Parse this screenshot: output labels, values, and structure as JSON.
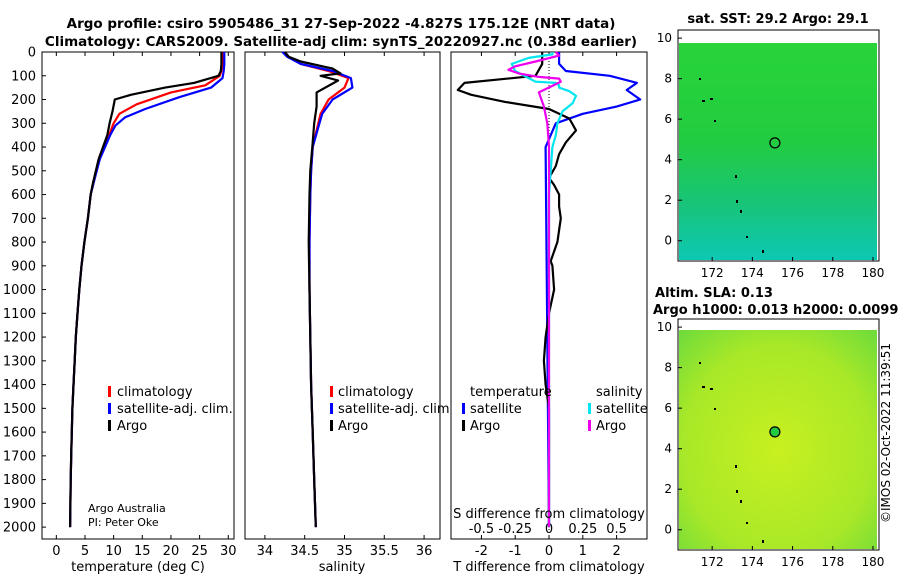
{
  "title": {
    "line1": "Argo profile: csiro 5905486_31 27-Sep-2022 -4.827S 175.12E (NRT data)",
    "line2": "Climatology: CARS2009. Satellite-adj clim: synTS_20220927.nc (0.38d earlier)"
  },
  "credits": {
    "org": "Argo Australia",
    "pi": "PI: Peter Oke"
  },
  "stamp": "©IMOS 02-Oct-2022 11:39:51",
  "colors": {
    "climatology": "#ff0000",
    "satellite": "#0000ff",
    "argo": "#000000",
    "satellite_s": "#00e5ee",
    "argo_s": "#ee00ee",
    "dotted": "#000000"
  },
  "chart_data": [
    {
      "id": "temperature",
      "type": "line",
      "xlabel": "temperature (deg C)",
      "ylabel": "",
      "xlim": [
        -2.5,
        31
      ],
      "ylim": [
        2050,
        0
      ],
      "xticks": [
        "0",
        "5",
        "10",
        "15",
        "20",
        "25",
        "30"
      ],
      "xtick_values": [
        0,
        5,
        10,
        15,
        20,
        25,
        30
      ],
      "yticks": [
        "0",
        "100",
        "200",
        "300",
        "400",
        "500",
        "600",
        "700",
        "800",
        "900",
        "1000",
        "1100",
        "1200",
        "1300",
        "1400",
        "1500",
        "1600",
        "1700",
        "1800",
        "1900",
        "2000"
      ],
      "ytick_values": [
        0,
        100,
        200,
        300,
        400,
        500,
        600,
        700,
        800,
        900,
        1000,
        1100,
        1200,
        1300,
        1400,
        1500,
        1600,
        1700,
        1800,
        1900,
        2000
      ],
      "legend": [
        "climatology",
        "satellite-adj. clim.",
        "Argo"
      ],
      "series": [
        {
          "name": "climatology",
          "color": "#ff0000",
          "x": [
            29.0,
            29.0,
            28.8,
            28.5,
            26.0,
            20.0,
            14.0,
            11.0,
            10.0,
            9.2,
            7.5,
            6.5,
            6.0,
            5.5,
            4.9,
            4.4,
            4.0,
            3.7,
            3.4,
            3.2,
            3.0,
            2.8,
            2.7,
            2.6,
            2.5,
            2.45,
            2.4
          ],
          "y": [
            0,
            50,
            80,
            100,
            140,
            170,
            220,
            260,
            300,
            350,
            450,
            550,
            600,
            700,
            800,
            900,
            1000,
            1100,
            1200,
            1300,
            1400,
            1500,
            1600,
            1700,
            1800,
            1900,
            2000
          ]
        },
        {
          "name": "satellite-adj. clim.",
          "color": "#0000ff",
          "x": [
            29.3,
            29.3,
            29.2,
            29.0,
            27.0,
            21.5,
            15.5,
            12.0,
            10.3,
            9.4,
            7.6,
            6.5,
            6.0,
            5.5,
            4.9,
            4.4,
            4.0,
            3.7,
            3.4,
            3.2,
            3.0,
            2.8,
            2.7,
            2.6,
            2.5,
            2.45,
            2.4
          ],
          "y": [
            0,
            50,
            80,
            110,
            150,
            190,
            240,
            275,
            310,
            350,
            450,
            550,
            600,
            700,
            800,
            900,
            1000,
            1100,
            1200,
            1300,
            1400,
            1500,
            1600,
            1700,
            1800,
            1900,
            2000
          ]
        },
        {
          "name": "Argo",
          "color": "#000000",
          "x": [
            28.8,
            28.8,
            28.7,
            28.3,
            24.0,
            19.0,
            13.0,
            10.2,
            9.8,
            9.3,
            8.9,
            7.4,
            6.4,
            6.0,
            5.5,
            4.9,
            4.4,
            4.0,
            3.7,
            3.4,
            3.2,
            3.0,
            2.8,
            2.7,
            2.6,
            2.5,
            2.45,
            2.4
          ],
          "y": [
            0,
            50,
            80,
            100,
            130,
            150,
            180,
            200,
            250,
            300,
            350,
            450,
            550,
            600,
            700,
            800,
            900,
            1000,
            1100,
            1200,
            1300,
            1400,
            1500,
            1600,
            1700,
            1800,
            1900,
            2000
          ]
        }
      ]
    },
    {
      "id": "salinity",
      "type": "line",
      "xlabel": "salinity",
      "xlim": [
        33.75,
        36.2
      ],
      "ylim": [
        2050,
        0
      ],
      "xticks": [
        "34",
        "34.5",
        "35",
        "35.5",
        "36"
      ],
      "xtick_values": [
        34,
        34.5,
        35,
        35.5,
        36
      ],
      "legend": [
        "climatology",
        "satellite-adj. clim.",
        "Argo"
      ],
      "series": [
        {
          "name": "climatology",
          "color": "#ff0000",
          "x": [
            34.25,
            34.3,
            34.45,
            34.8,
            35.05,
            35.0,
            34.8,
            34.7,
            34.65,
            34.6,
            34.58,
            34.57,
            34.56,
            34.56,
            34.57,
            34.58,
            34.6,
            34.62,
            34.64
          ],
          "y": [
            0,
            20,
            50,
            80,
            110,
            150,
            200,
            260,
            330,
            400,
            500,
            600,
            800,
            1000,
            1200,
            1400,
            1600,
            1800,
            2000
          ]
        },
        {
          "name": "satellite-adj. clim.",
          "color": "#0000ff",
          "x": [
            34.22,
            34.28,
            34.45,
            34.85,
            35.08,
            35.1,
            34.85,
            34.72,
            34.66,
            34.6,
            34.58,
            34.57,
            34.56,
            34.56,
            34.57,
            34.58,
            34.6,
            34.62,
            34.64
          ],
          "y": [
            0,
            20,
            50,
            80,
            110,
            150,
            200,
            260,
            330,
            400,
            500,
            600,
            800,
            1000,
            1200,
            1400,
            1600,
            1800,
            2000
          ]
        },
        {
          "name": "Argo",
          "color": "#000000",
          "x": [
            34.25,
            34.3,
            34.45,
            34.85,
            34.95,
            34.7,
            34.92,
            34.65,
            34.65,
            34.62,
            34.6,
            34.57,
            34.56,
            34.55,
            34.56,
            34.57,
            34.58,
            34.6,
            34.62,
            34.64
          ],
          "y": [
            0,
            20,
            40,
            70,
            90,
            100,
            120,
            170,
            230,
            300,
            380,
            500,
            600,
            800,
            1000,
            1200,
            1400,
            1600,
            1800,
            2000
          ]
        }
      ]
    },
    {
      "id": "difference",
      "type": "line",
      "xlabel": "T difference from climatology",
      "xlabel_top": "S difference from climatology",
      "xlim": [
        -2.9,
        2.9
      ],
      "ylim": [
        2050,
        0
      ],
      "xticks": [
        "-2",
        "-1",
        "0",
        "1",
        "2"
      ],
      "xtick_values": [
        -2,
        -1,
        0,
        1,
        2
      ],
      "xticks_s": [
        "-0.5",
        "-0.25",
        "0",
        "0.25",
        "0.5"
      ],
      "xtick_values_s": [
        -2,
        -1,
        0,
        1,
        2
      ],
      "legend_title_t": "temperature",
      "legend_title_s": "salinity",
      "legend_t": [
        "satellite",
        "Argo"
      ],
      "legend_s": [
        "satellite",
        "Argo"
      ],
      "series": [
        {
          "name": "T satellite",
          "color": "#0000ff",
          "x": [
            0.3,
            0.3,
            0.5,
            1.8,
            2.6,
            2.3,
            2.7,
            2.0,
            1.0,
            0.2,
            -0.1,
            0.0
          ],
          "y": [
            0,
            50,
            80,
            100,
            130,
            160,
            200,
            230,
            260,
            300,
            400,
            2000
          ]
        },
        {
          "name": "T Argo",
          "color": "#000000",
          "x": [
            -0.2,
            -0.2,
            -0.4,
            -2.5,
            -2.7,
            -2.3,
            -1.3,
            0.0,
            0.6,
            0.8,
            0.5,
            0.3,
            0.2,
            0.0,
            0.15,
            0.3,
            0.3,
            0.35,
            0.25,
            0.05,
            0.1,
            0.15,
            0.0,
            -0.1,
            -0.15,
            -0.1,
            0.0,
            0.0
          ],
          "y": [
            0,
            50,
            100,
            130,
            160,
            180,
            210,
            240,
            280,
            330,
            380,
            430,
            480,
            530,
            560,
            600,
            650,
            700,
            800,
            880,
            900,
            1000,
            1100,
            1200,
            1300,
            1400,
            1500,
            2000
          ]
        },
        {
          "name": "S satellite",
          "color": "#00e5ee",
          "x": [
            0.1,
            0.1,
            -0.6,
            -1.1,
            -1.0,
            -0.6,
            -0.4,
            0.2,
            0.3,
            0.3,
            0.6,
            0.8,
            0.7,
            0.4,
            0.25,
            0.2,
            0.1,
            0.05,
            0.0,
            0.0,
            0.0
          ],
          "y": [
            0,
            10,
            25,
            50,
            80,
            110,
            125,
            130,
            140,
            150,
            165,
            185,
            215,
            250,
            300,
            350,
            400,
            500,
            600,
            700,
            2000
          ]
        },
        {
          "name": "S Argo",
          "color": "#ee00ee",
          "x": [
            0.2,
            0.3,
            -0.4,
            -1.0,
            -1.2,
            -0.9,
            -0.3,
            0.3,
            0.35,
            -0.3,
            -0.15,
            -0.05,
            0.0,
            0.0,
            0.0
          ],
          "y": [
            0,
            15,
            40,
            60,
            75,
            90,
            105,
            112,
            125,
            170,
            230,
            300,
            400,
            600,
            2000
          ]
        }
      ]
    },
    {
      "id": "sst_map",
      "type": "heatmap",
      "title": "sat. SST: 29.2 Argo: 29.1",
      "xlim": [
        170.3,
        180.3
      ],
      "ylim": [
        -1,
        10.4
      ],
      "xticks": [
        "172",
        "174",
        "176",
        "178",
        "180"
      ],
      "xtick_values": [
        172,
        174,
        176,
        178,
        180
      ],
      "yticks": [
        "0",
        "2",
        "4",
        "6",
        "8",
        "10"
      ],
      "ytick_values": [
        0,
        2,
        4,
        6,
        8,
        10
      ],
      "marker": {
        "lon": 175.12,
        "lat": 4.83
      }
    },
    {
      "id": "sla_map",
      "type": "heatmap",
      "title": "Altim. SLA: 0.13",
      "subtitle": "Argo h1000: 0.013 h2000: 0.0099",
      "xlim": [
        170.3,
        180.3
      ],
      "ylim": [
        -1,
        10.4
      ],
      "xticks": [
        "172",
        "174",
        "176",
        "178",
        "180"
      ],
      "xtick_values": [
        172,
        174,
        176,
        178,
        180
      ],
      "yticks": [
        "0",
        "2",
        "4",
        "6",
        "8",
        "10"
      ],
      "ytick_values": [
        0,
        2,
        4,
        6,
        8,
        10
      ],
      "marker": {
        "lon": 175.12,
        "lat": 4.83
      }
    }
  ]
}
